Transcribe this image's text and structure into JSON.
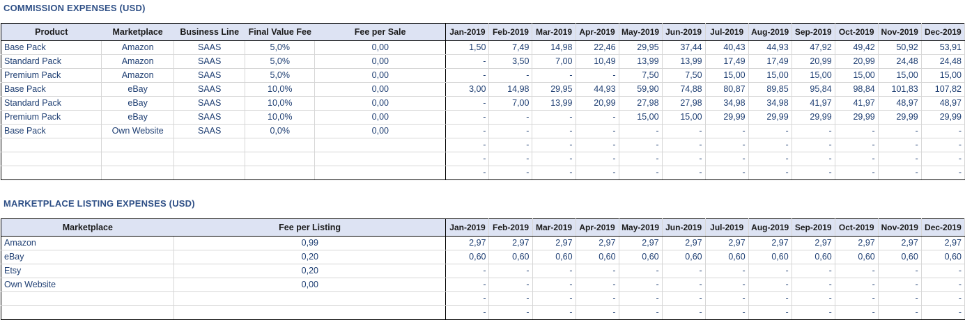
{
  "commission": {
    "title": "COMMISSION EXPENSES (USD)",
    "headers": [
      "Product",
      "Marketplace",
      "Business Line",
      "Final Value Fee",
      "Fee per Sale"
    ],
    "months": [
      "Jan-2019",
      "Feb-2019",
      "Mar-2019",
      "Apr-2019",
      "May-2019",
      "Jun-2019",
      "Jul-2019",
      "Aug-2019",
      "Sep-2019",
      "Oct-2019",
      "Nov-2019",
      "Dec-2019"
    ],
    "rows": [
      {
        "product": "Base Pack",
        "marketplace": "Amazon",
        "business_line": "SAAS",
        "final_value_fee": "5,0%",
        "fee_per_sale": "0,00",
        "values": [
          "1,50",
          "7,49",
          "14,98",
          "22,46",
          "29,95",
          "37,44",
          "40,43",
          "44,93",
          "47,92",
          "49,42",
          "50,92",
          "53,91"
        ]
      },
      {
        "product": "Standard Pack",
        "marketplace": "Amazon",
        "business_line": "SAAS",
        "final_value_fee": "5,0%",
        "fee_per_sale": "0,00",
        "values": [
          "-",
          "3,50",
          "7,00",
          "10,49",
          "13,99",
          "13,99",
          "17,49",
          "17,49",
          "20,99",
          "20,99",
          "24,48",
          "24,48"
        ]
      },
      {
        "product": "Premium Pack",
        "marketplace": "Amazon",
        "business_line": "SAAS",
        "final_value_fee": "5,0%",
        "fee_per_sale": "0,00",
        "values": [
          "-",
          "-",
          "-",
          "-",
          "7,50",
          "7,50",
          "15,00",
          "15,00",
          "15,00",
          "15,00",
          "15,00",
          "15,00"
        ]
      },
      {
        "product": "Base Pack",
        "marketplace": "eBay",
        "business_line": "SAAS",
        "final_value_fee": "10,0%",
        "fee_per_sale": "0,00",
        "values": [
          "3,00",
          "14,98",
          "29,95",
          "44,93",
          "59,90",
          "74,88",
          "80,87",
          "89,85",
          "95,84",
          "98,84",
          "101,83",
          "107,82"
        ]
      },
      {
        "product": "Standard Pack",
        "marketplace": "eBay",
        "business_line": "SAAS",
        "final_value_fee": "10,0%",
        "fee_per_sale": "0,00",
        "values": [
          "-",
          "7,00",
          "13,99",
          "20,99",
          "27,98",
          "27,98",
          "34,98",
          "34,98",
          "41,97",
          "41,97",
          "48,97",
          "48,97"
        ]
      },
      {
        "product": "Premium Pack",
        "marketplace": "eBay",
        "business_line": "SAAS",
        "final_value_fee": "10,0%",
        "fee_per_sale": "0,00",
        "values": [
          "-",
          "-",
          "-",
          "-",
          "15,00",
          "15,00",
          "29,99",
          "29,99",
          "29,99",
          "29,99",
          "29,99",
          "29,99"
        ]
      },
      {
        "product": "Base Pack",
        "marketplace": "Own Website",
        "business_line": "SAAS",
        "final_value_fee": "0,0%",
        "fee_per_sale": "0,00",
        "values": [
          "-",
          "-",
          "-",
          "-",
          "-",
          "-",
          "-",
          "-",
          "-",
          "-",
          "-",
          "-"
        ]
      },
      {
        "product": "",
        "marketplace": "",
        "business_line": "",
        "final_value_fee": "",
        "fee_per_sale": "",
        "values": [
          "-",
          "-",
          "-",
          "-",
          "-",
          "-",
          "-",
          "-",
          "-",
          "-",
          "-",
          "-"
        ]
      },
      {
        "product": "",
        "marketplace": "",
        "business_line": "",
        "final_value_fee": "",
        "fee_per_sale": "",
        "values": [
          "-",
          "-",
          "-",
          "-",
          "-",
          "-",
          "-",
          "-",
          "-",
          "-",
          "-",
          "-"
        ]
      },
      {
        "product": "",
        "marketplace": "",
        "business_line": "",
        "final_value_fee": "",
        "fee_per_sale": "",
        "values": [
          "-",
          "-",
          "-",
          "-",
          "-",
          "-",
          "-",
          "-",
          "-",
          "-",
          "-",
          "-"
        ]
      }
    ]
  },
  "listing": {
    "title": "MARKETPLACE LISTING EXPENSES (USD)",
    "headers": [
      "Marketplace",
      "Fee per Listing"
    ],
    "months": [
      "Jan-2019",
      "Feb-2019",
      "Mar-2019",
      "Apr-2019",
      "May-2019",
      "Jun-2019",
      "Jul-2019",
      "Aug-2019",
      "Sep-2019",
      "Oct-2019",
      "Nov-2019",
      "Dec-2019"
    ],
    "rows": [
      {
        "marketplace": "Amazon",
        "fee_per_listing": "0,99",
        "values": [
          "2,97",
          "2,97",
          "2,97",
          "2,97",
          "2,97",
          "2,97",
          "2,97",
          "2,97",
          "2,97",
          "2,97",
          "2,97",
          "2,97"
        ]
      },
      {
        "marketplace": "eBay",
        "fee_per_listing": "0,20",
        "values": [
          "0,60",
          "0,60",
          "0,60",
          "0,60",
          "0,60",
          "0,60",
          "0,60",
          "0,60",
          "0,60",
          "0,60",
          "0,60",
          "0,60"
        ]
      },
      {
        "marketplace": "Etsy",
        "fee_per_listing": "0,20",
        "values": [
          "-",
          "-",
          "-",
          "-",
          "-",
          "-",
          "-",
          "-",
          "-",
          "-",
          "-",
          "-"
        ]
      },
      {
        "marketplace": "Own Website",
        "fee_per_listing": "0,00",
        "values": [
          "-",
          "-",
          "-",
          "-",
          "-",
          "-",
          "-",
          "-",
          "-",
          "-",
          "-",
          "-"
        ]
      },
      {
        "marketplace": "",
        "fee_per_listing": "",
        "values": [
          "-",
          "-",
          "-",
          "-",
          "-",
          "-",
          "-",
          "-",
          "-",
          "-",
          "-",
          "-"
        ]
      },
      {
        "marketplace": "",
        "fee_per_listing": "",
        "values": [
          "-",
          "-",
          "-",
          "-",
          "-",
          "-",
          "-",
          "-",
          "-",
          "-",
          "-",
          "-"
        ]
      }
    ]
  }
}
